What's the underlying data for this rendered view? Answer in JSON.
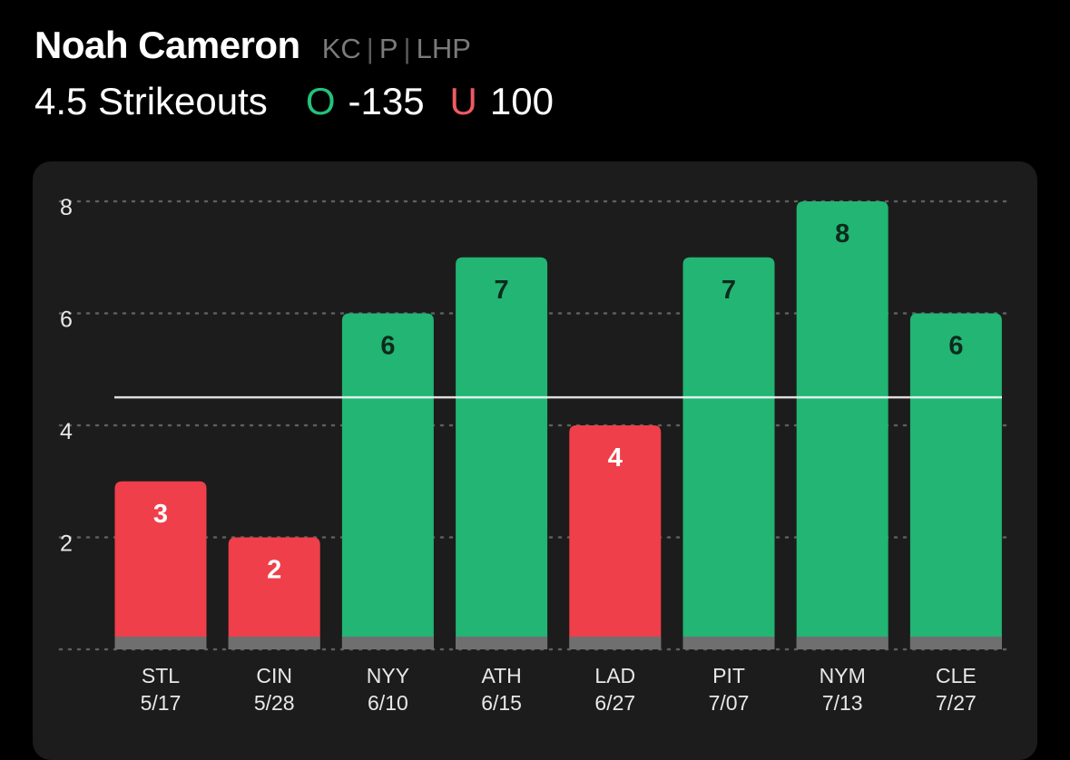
{
  "player": {
    "name": "Noah Cameron",
    "team": "KC",
    "position": "P",
    "hand": "LHP"
  },
  "prop": {
    "line": "4.5 Strikeouts",
    "over_label": "O",
    "over_odds": "-135",
    "under_label": "U",
    "under_odds": "100"
  },
  "colors": {
    "over": "#22b573",
    "under": "#ef3f4a",
    "over_text": "#1f8a58",
    "under_text": "#ef5a63",
    "background": "#000000",
    "card": "#1c1c1c"
  },
  "chart_data": {
    "type": "bar",
    "categories": [
      "STL",
      "CIN",
      "NYY",
      "ATH",
      "LAD",
      "PIT",
      "NYM",
      "CLE"
    ],
    "dates": [
      "5/17",
      "5/28",
      "6/10",
      "6/15",
      "6/27",
      "7/07",
      "7/13",
      "7/27"
    ],
    "values": [
      3,
      2,
      6,
      7,
      4,
      7,
      8,
      6
    ],
    "data_labels": [
      "3",
      "2",
      "6",
      "7",
      "4",
      "7",
      "8",
      "6"
    ],
    "result": [
      "under",
      "under",
      "over",
      "over",
      "under",
      "over",
      "over",
      "over"
    ],
    "threshold": 4.5,
    "y_ticks": [
      2,
      4,
      6,
      8
    ],
    "y_tick_labels": [
      "2",
      "4",
      "6",
      "8"
    ],
    "ylim": [
      0,
      8
    ],
    "grid": true,
    "title": "",
    "xlabel": "",
    "ylabel": ""
  }
}
